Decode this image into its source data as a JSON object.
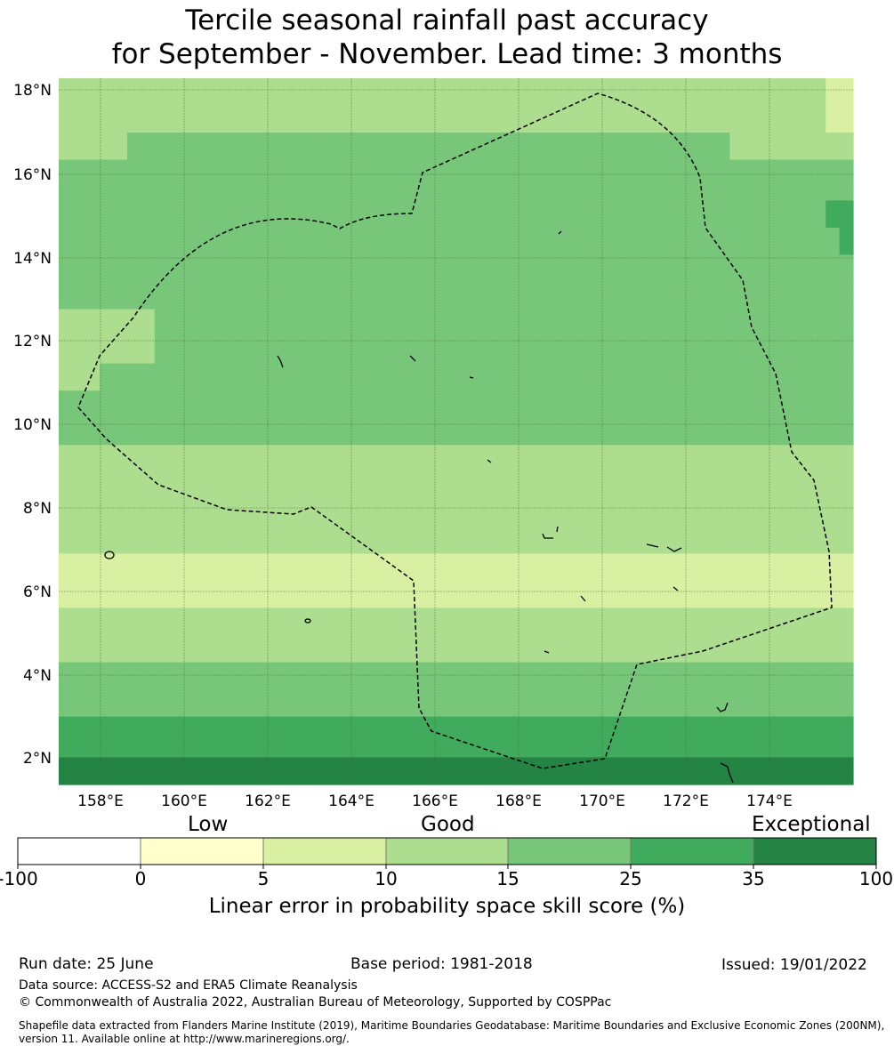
{
  "title_line1": "Tercile seasonal rainfall past accuracy",
  "title_line2": "for September - November. Lead time: 3 months",
  "map": {
    "lon_ticks": [
      "158°E",
      "160°E",
      "162°E",
      "164°E",
      "166°E",
      "168°E",
      "170°E",
      "172°E",
      "174°E"
    ],
    "lat_ticks": [
      "2°N",
      "4°N",
      "6°N",
      "8°N",
      "10°N",
      "12°N",
      "14°N",
      "16°N",
      "18°N"
    ],
    "palette": [
      "#ffffff",
      "#ffffcc",
      "#d9f0a3",
      "#addd8e",
      "#78c679",
      "#41ab5d",
      "#238443"
    ],
    "grid_rows": [
      "3333333333333333333333333333333333333333333333333333333322",
      "3333333333333333333333333333333333333333333333333333333322",
      "3333333333333333333333333333333333333333333333333333333322",
      "3333333333333333333333333333333333333333333333333333333322",
      "3333344444444444444444444444444444444444444444444333333333",
      "3333344444444444444444444444444444444444444444444333333333",
      "4444444444444444444444444444444444444444444444444444444444",
      "4444444444444444444444444444444444444444444444444444444444",
      "4444444444444444444444444444444444444444444444444444444444",
      "4444444444444444444444444444444444444444444444444444444455",
      "4444444444444444444444444444444444444444444444444444444455",
      "4444444444444444444444444444444444444444444444444444444445",
      "4444444444444444444444444444444444444444444444444444444445",
      "4444444444444444444444444444444444444444444444444444444444",
      "4444444444444444444444444444444444444444444444444444444444",
      "4444444444444444444444444444444444444444444444444444444444",
      "4444444444444444444444444444444444444444444444444444444444",
      "3333333444444444444444444444444444444444444444444444444444",
      "3333333444444444444444444444444444444444444444444444444444",
      "3333333444444444444444444444444444444444444444444444444444",
      "3333333444444444444444444444444444444444444444444444444444",
      "3334444444444444444444444444444444444444444444444444444444",
      "3334444444444444444444444444444444444444444444444444444444",
      "4444444444444444444444444444444444444444444444444444444444",
      "4444444444444444444444444444444444444444444444444444444444",
      "4444444444444444444444444444444444444444444444444444444444",
      "4444444444444444444444444444444444444444444444444444444444",
      "3333333333333333333333333333333333333333333333333333333333",
      "3333333333333333333333333333333333333333333333333333333333",
      "3333333333333333333333333333333333333333333333333333333333",
      "3333333333333333333333333333333333333333333333333333333333",
      "3333333333333333333333333333333333333333333333333333333333",
      "3333333333333333333333333333333333333333333333333333333333",
      "3333333333333333333333333333333333333333333333333333333333",
      "3333333333333333333333333333333333333333333333333333333333",
      "2222222222222222222222222222222222222222222222222222222222",
      "2222222222222222222222222222222222222222222222222222222222",
      "2222222222222222222222222222222222222222222222222222222222",
      "2222222222222222222222222222222222222222222222222222222222",
      "3333333333333333333333333333333333333333333333333333333333",
      "3333333333333333333333333333333333333333333333333333333333",
      "3333333333333333333333333333333333333333333333333333333333",
      "3333333333333333333333333333333333333333333333333333333333",
      "4444444444444444444444444444444444444444444444444444444444",
      "4444444444444444444444444444444444444444444444444444444444",
      "4444444444444444444444444444444444444444444444444444444444",
      "4444444444444444444444444444444444444444444444444444444444",
      "5555555555555555555555555555555555555555555555555555555555",
      "5555555555555555555555555555555555555555555555555555555555",
      "5555555555555555555555555555555555555555555555555555555555",
      "6666666666666666666666666666666666666666666666666666666666",
      "6666666666666666666666666666666666666666666666666666666666"
    ]
  },
  "colorbar": {
    "word_low": "Low",
    "word_good": "Good",
    "word_exceptional": "Exceptional",
    "ticks": [
      "-100",
      "0",
      "5",
      "10",
      "15",
      "25",
      "35",
      "100"
    ],
    "label": "Linear error in probability space skill score (%)"
  },
  "footer": {
    "run_date": "Run date: 25 June",
    "base_period": "Base period: 1981-2018",
    "issued": "Issued: 19/01/2022",
    "data_source": "Data source: ACCESS-S2 and ERA5 Climate Reanalysis",
    "copyright": "© Commonwealth of Australia 2022, Australian Bureau of Meteorology, Supported by COSPPac",
    "shapefile": "Shapefile data extracted from Flanders Marine Institute (2019), Maritime Boundaries Geodatabase: Maritime Boundaries and Exclusive Economic Zones (200NM), version 11. Available online at http://www.marineregions.org/."
  }
}
